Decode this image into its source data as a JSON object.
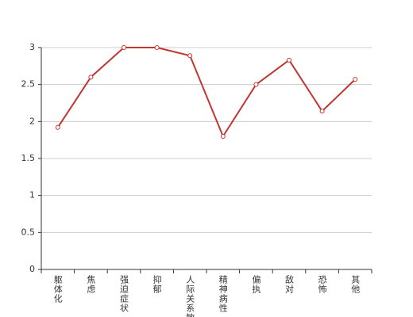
{
  "chart_data": {
    "type": "line",
    "categories": [
      "躯体化",
      "焦虑",
      "强迫症状",
      "抑郁",
      "人际关系敏感",
      "精神病性",
      "偏执",
      "敌对",
      "恐怖",
      "其他"
    ],
    "values": [
      1.92,
      2.6,
      3.0,
      3.0,
      2.89,
      1.8,
      2.5,
      2.83,
      2.14,
      2.57
    ],
    "color": "#c23531",
    "ylim": [
      0,
      3
    ],
    "yticks": [
      0,
      0.5,
      1,
      1.5,
      2,
      2.5,
      3
    ],
    "grid": true
  }
}
